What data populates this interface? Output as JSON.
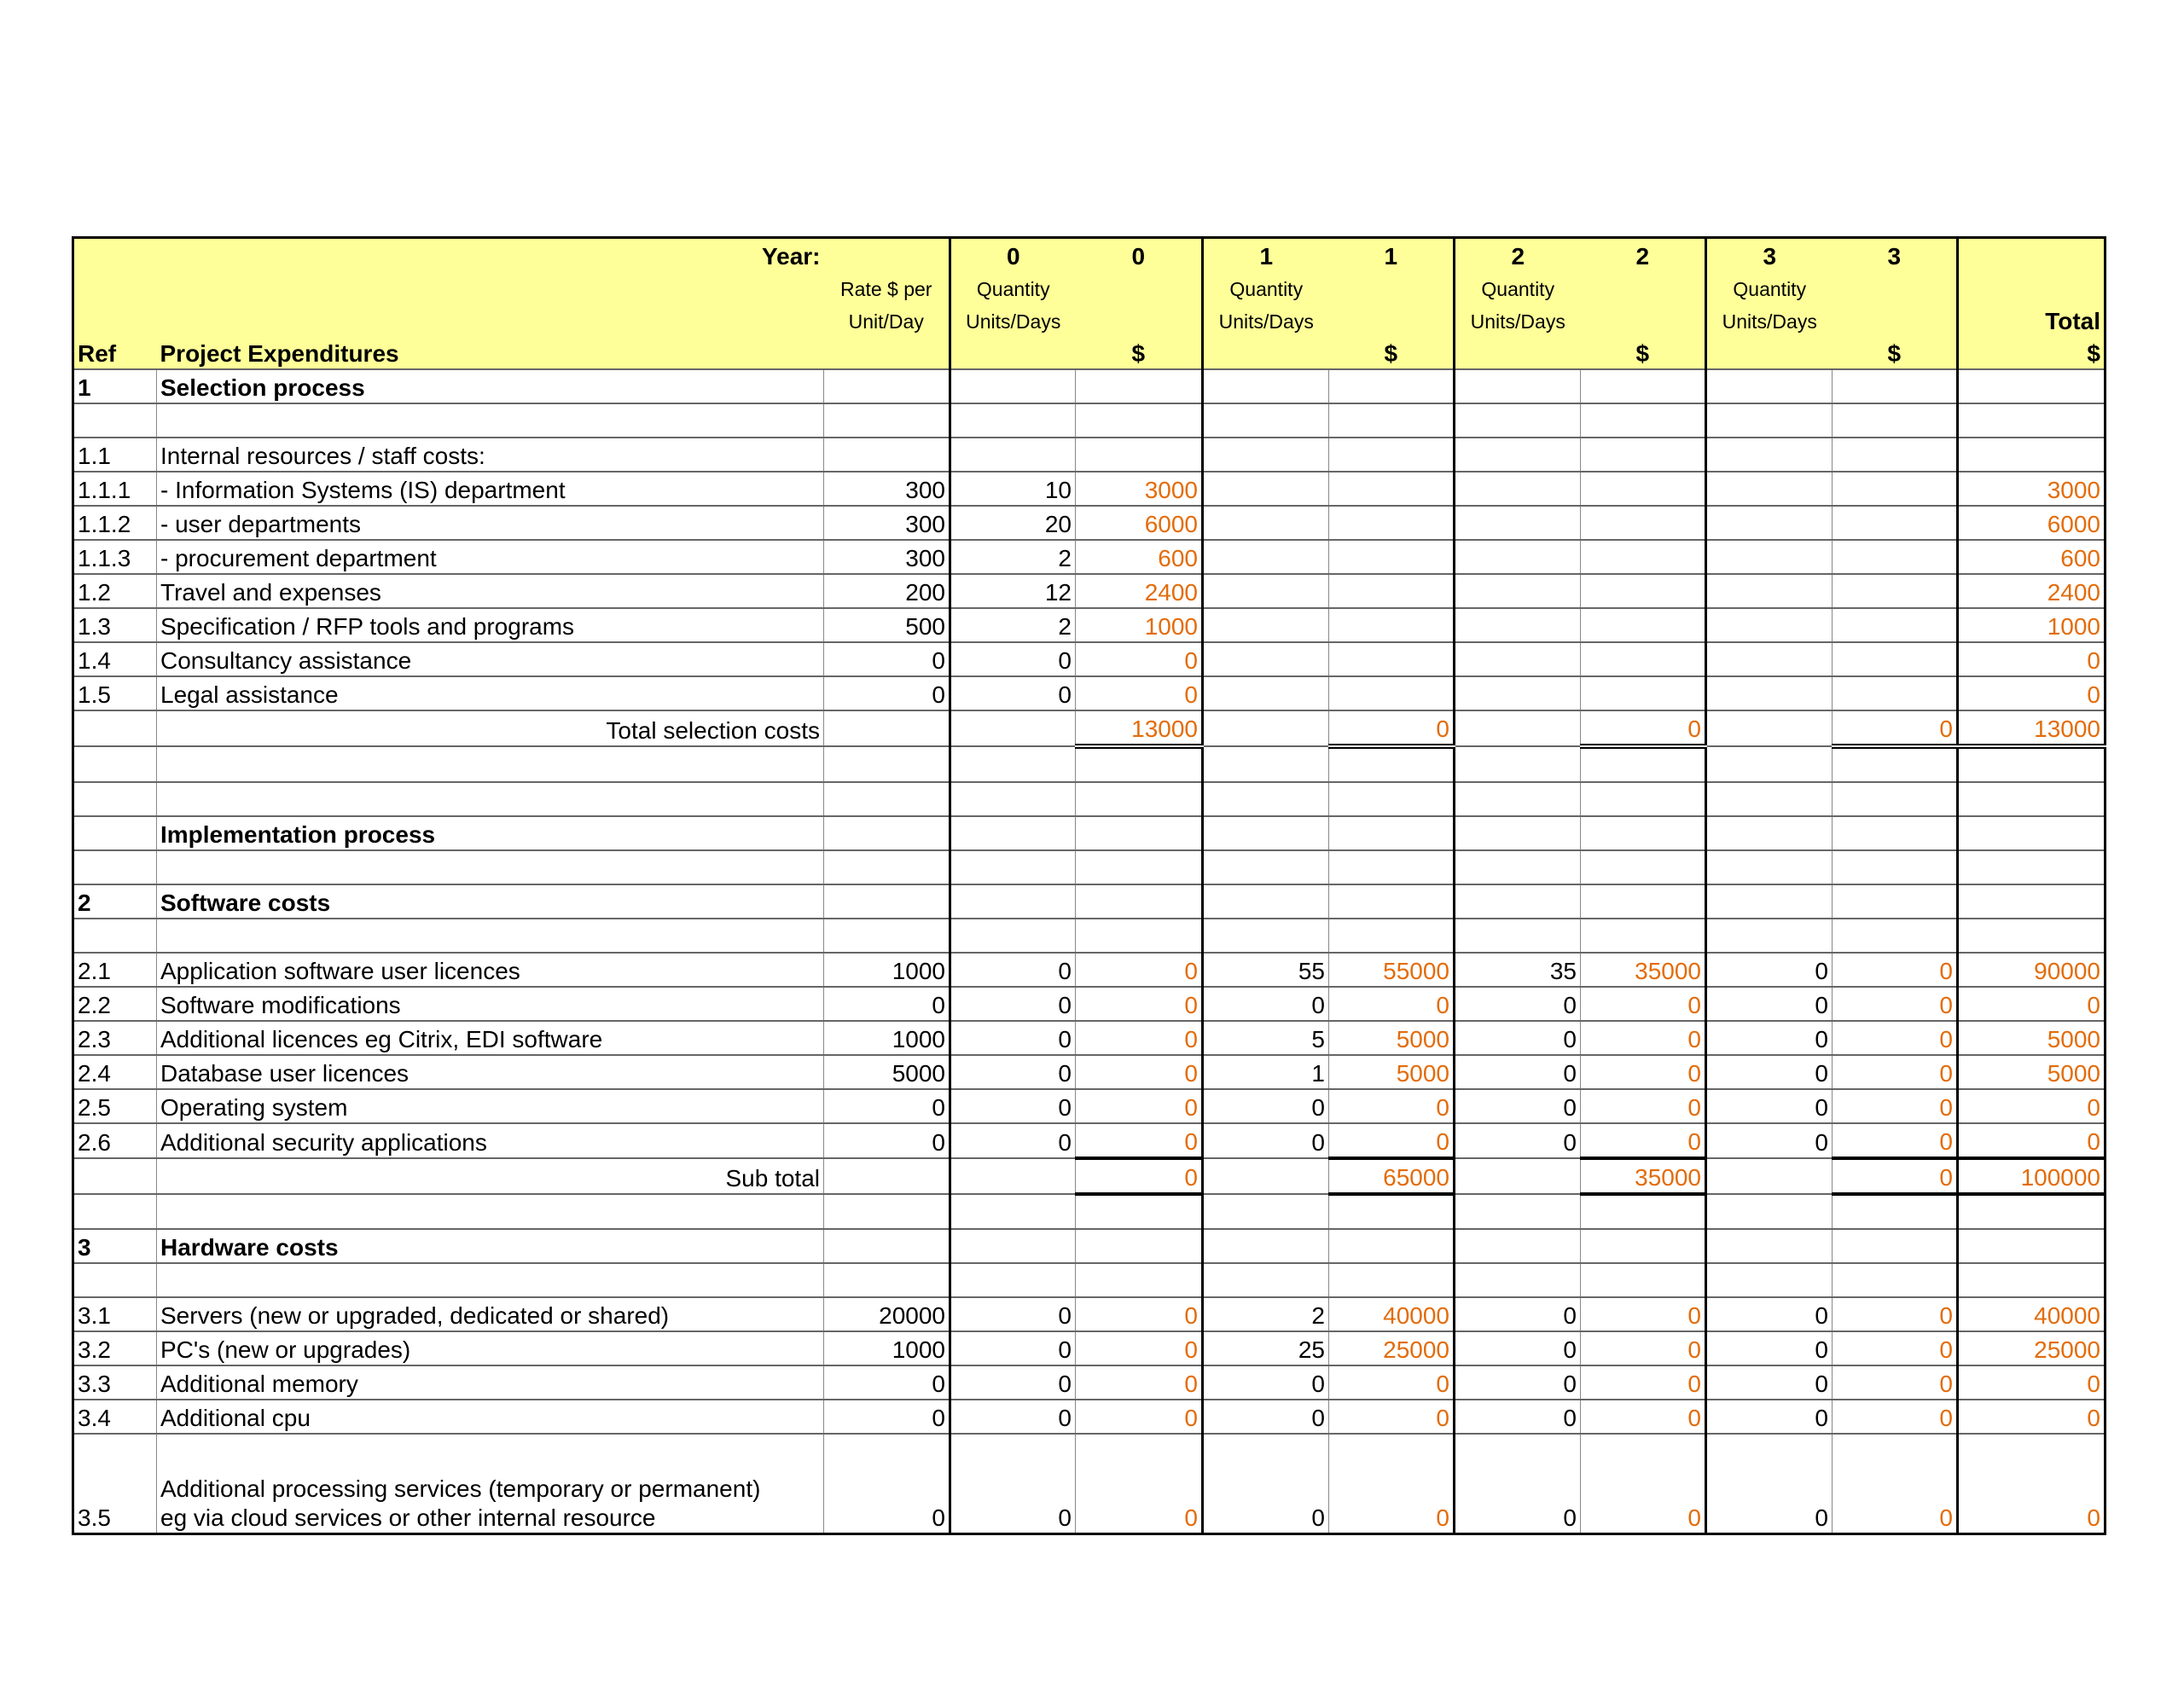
{
  "header": {
    "year_label": "Year:",
    "ref_label": "Ref",
    "expenditures_label": "Project Expenditures",
    "rate_label_1": "Rate $ per",
    "rate_label_2": "Unit/Day",
    "years": [
      "0",
      "1",
      "2",
      "3"
    ],
    "qty_label_1": "Quantity",
    "qty_label_2": "Units/Days",
    "dollar_label": "$",
    "total_label": "Total"
  },
  "colors": {
    "header_bg": "#ffff99",
    "computed_value": "#e36c0a"
  },
  "rows": [
    {
      "ref": "1",
      "desc": "Selection process",
      "bold": true,
      "cells": [
        "",
        "",
        "",
        "",
        "",
        "",
        "",
        "",
        "",
        ""
      ]
    },
    {
      "ref": "",
      "desc": "",
      "cells": [
        "",
        "",
        "",
        "",
        "",
        "",
        "",
        "",
        "",
        ""
      ]
    },
    {
      "ref": "1.1",
      "desc": "Internal resources / staff costs:",
      "cells": [
        "",
        "",
        "",
        "",
        "",
        "",
        "",
        "",
        "",
        ""
      ]
    },
    {
      "ref": "1.1.1",
      "desc": "- Information Systems (IS) department",
      "cells": [
        "300",
        "10",
        "3000",
        "",
        "",
        "",
        "",
        "",
        "",
        "3000"
      ]
    },
    {
      "ref": "1.1.2",
      "desc": "- user departments",
      "cells": [
        "300",
        "20",
        "6000",
        "",
        "",
        "",
        "",
        "",
        "",
        "6000"
      ]
    },
    {
      "ref": "1.1.3",
      "desc": "- procurement department",
      "cells": [
        "300",
        "2",
        "600",
        "",
        "",
        "",
        "",
        "",
        "",
        "600"
      ]
    },
    {
      "ref": "1.2",
      "desc": "Travel and expenses",
      "cells": [
        "200",
        "12",
        "2400",
        "",
        "",
        "",
        "",
        "",
        "",
        "2400"
      ]
    },
    {
      "ref": "1.3",
      "desc": "Specification / RFP tools and programs",
      "cells": [
        "500",
        "2",
        "1000",
        "",
        "",
        "",
        "",
        "",
        "",
        "1000"
      ]
    },
    {
      "ref": "1.4",
      "desc": "Consultancy assistance",
      "cells": [
        "0",
        "0",
        "0",
        "",
        "",
        "",
        "",
        "",
        "",
        "0"
      ]
    },
    {
      "ref": "1.5",
      "desc": "Legal assistance",
      "cells": [
        "0",
        "0",
        "0",
        "",
        "",
        "",
        "",
        "",
        "",
        "0"
      ]
    },
    {
      "ref": "",
      "desc": "Total selection costs",
      "type": "total",
      "cells": [
        "",
        "",
        "13000",
        "",
        "0",
        "",
        "0",
        "",
        "0",
        "13000"
      ]
    },
    {
      "ref": "",
      "desc": "",
      "cells": [
        "",
        "",
        "",
        "",
        "",
        "",
        "",
        "",
        "",
        ""
      ]
    },
    {
      "ref": "",
      "desc": "",
      "cells": [
        "",
        "",
        "",
        "",
        "",
        "",
        "",
        "",
        "",
        ""
      ]
    },
    {
      "ref": "",
      "desc": "Implementation process",
      "bold": true,
      "cells": [
        "",
        "",
        "",
        "",
        "",
        "",
        "",
        "",
        "",
        ""
      ]
    },
    {
      "ref": "",
      "desc": "",
      "cells": [
        "",
        "",
        "",
        "",
        "",
        "",
        "",
        "",
        "",
        ""
      ]
    },
    {
      "ref": "2",
      "desc": "Software costs",
      "bold": true,
      "cells": [
        "",
        "",
        "",
        "",
        "",
        "",
        "",
        "",
        "",
        ""
      ]
    },
    {
      "ref": "",
      "desc": "",
      "cells": [
        "",
        "",
        "",
        "",
        "",
        "",
        "",
        "",
        "",
        ""
      ]
    },
    {
      "ref": "2.1",
      "desc": "Application software user licences",
      "cells": [
        "1000",
        "0",
        "0",
        "55",
        "55000",
        "35",
        "35000",
        "0",
        "0",
        "90000"
      ]
    },
    {
      "ref": "2.2",
      "desc": "Software modifications",
      "cells": [
        "0",
        "0",
        "0",
        "0",
        "0",
        "0",
        "0",
        "0",
        "0",
        "0"
      ]
    },
    {
      "ref": "2.3",
      "desc": "Additional licences eg Citrix, EDI software",
      "cells": [
        "1000",
        "0",
        "0",
        "5",
        "5000",
        "0",
        "0",
        "0",
        "0",
        "5000"
      ]
    },
    {
      "ref": "2.4",
      "desc": "Database user licences",
      "cells": [
        "5000",
        "0",
        "0",
        "1",
        "5000",
        "0",
        "0",
        "0",
        "0",
        "5000"
      ]
    },
    {
      "ref": "2.5",
      "desc": "Operating system",
      "cells": [
        "0",
        "0",
        "0",
        "0",
        "0",
        "0",
        "0",
        "0",
        "0",
        "0"
      ]
    },
    {
      "ref": "2.6",
      "desc": "Additional security applications",
      "cells": [
        "0",
        "0",
        "0",
        "0",
        "0",
        "0",
        "0",
        "0",
        "0",
        "0"
      ]
    },
    {
      "ref": "",
      "desc": "Sub total",
      "type": "subtotal",
      "cells": [
        "",
        "",
        "0",
        "",
        "65000",
        "",
        "35000",
        "",
        "0",
        "100000"
      ]
    },
    {
      "ref": "",
      "desc": "",
      "cells": [
        "",
        "",
        "",
        "",
        "",
        "",
        "",
        "",
        "",
        ""
      ]
    },
    {
      "ref": "3",
      "desc": "Hardware costs",
      "bold": true,
      "cells": [
        "",
        "",
        "",
        "",
        "",
        "",
        "",
        "",
        "",
        ""
      ]
    },
    {
      "ref": "",
      "desc": "",
      "cells": [
        "",
        "",
        "",
        "",
        "",
        "",
        "",
        "",
        "",
        ""
      ]
    },
    {
      "ref": "3.1",
      "desc": "Servers (new or upgraded, dedicated or shared)",
      "cells": [
        "20000",
        "0",
        "0",
        "2",
        "40000",
        "0",
        "0",
        "0",
        "0",
        "40000"
      ]
    },
    {
      "ref": "3.2",
      "desc": "PC's (new or upgrades)",
      "cells": [
        "1000",
        "0",
        "0",
        "25",
        "25000",
        "0",
        "0",
        "0",
        "0",
        "25000"
      ]
    },
    {
      "ref": "3.3",
      "desc": "Additional memory",
      "cells": [
        "0",
        "0",
        "0",
        "0",
        "0",
        "0",
        "0",
        "0",
        "0",
        "0"
      ]
    },
    {
      "ref": "3.4",
      "desc": "Additional cpu",
      "cells": [
        "0",
        "0",
        "0",
        "0",
        "0",
        "0",
        "0",
        "0",
        "0",
        "0"
      ]
    },
    {
      "ref": "3.5",
      "desc": "Additional processing services (temporary or permanent)",
      "desc2": "eg via cloud services or other internal resource",
      "type": "tall",
      "cells": [
        "0",
        "0",
        "0",
        "0",
        "0",
        "0",
        "0",
        "0",
        "0",
        "0"
      ]
    }
  ]
}
